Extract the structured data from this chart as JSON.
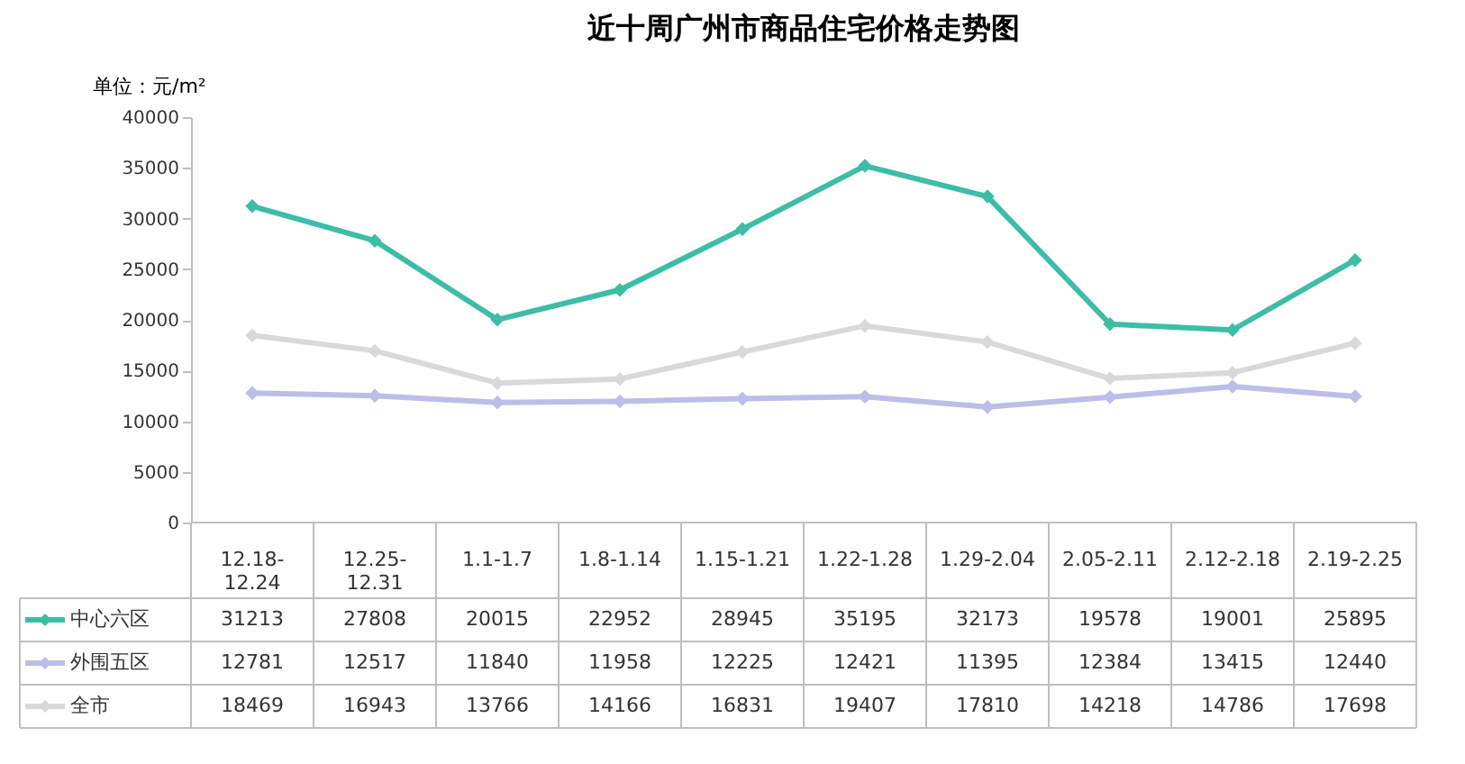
{
  "chart_data": {
    "type": "line",
    "title": "近十周广州市商品住宅价格走势图",
    "ylabel": "单位：元/m²",
    "categories": [
      "12.18-12.24",
      "12.25-12.31",
      "1.1-1.7",
      "1.8-1.14",
      "1.15-1.21",
      "1.22-1.28",
      "1.29-2.04",
      "2.05-2.11",
      "2.12-2.18",
      "2.19-2.25"
    ],
    "series": [
      {
        "name": "中心六区",
        "color": "#3dbda6",
        "values": [
          31213,
          27808,
          20015,
          22952,
          28945,
          35195,
          32173,
          19578,
          19001,
          25895
        ]
      },
      {
        "name": "外围五区",
        "color": "#bcbde8",
        "values": [
          12781,
          12517,
          11840,
          11958,
          12225,
          12421,
          11395,
          12384,
          13415,
          12440
        ]
      },
      {
        "name": "全市",
        "color": "#d9d9d9",
        "values": [
          18469,
          16943,
          13766,
          14166,
          16831,
          19407,
          17810,
          14218,
          14786,
          17698
        ]
      }
    ],
    "ylim": [
      0,
      40000
    ],
    "yticks": [
      0,
      5000,
      10000,
      15000,
      20000,
      25000,
      30000,
      35000,
      40000
    ],
    "data_labels": true,
    "legend": "bottom left",
    "marker": "diamond",
    "line_style": "solid"
  }
}
